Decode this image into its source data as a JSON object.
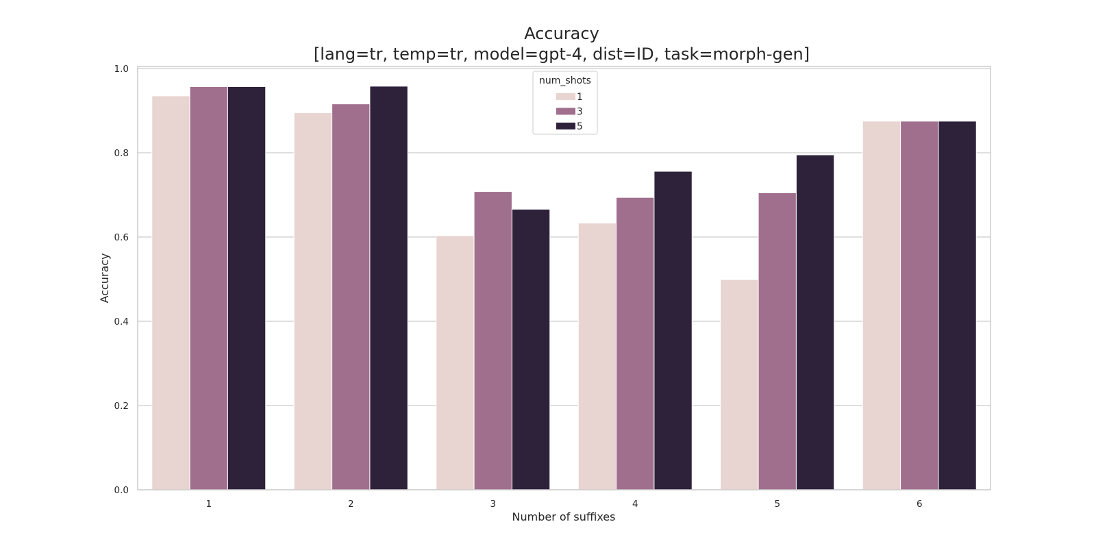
{
  "chart_data": {
    "type": "bar",
    "title": "Accuracy",
    "subtitle": "[lang=tr, temp=tr, model=gpt-4, dist=ID, task=morph-gen]",
    "xlabel": "Number of suffixes",
    "ylabel": "Accuracy",
    "categories": [
      "1",
      "2",
      "3",
      "4",
      "5",
      "6"
    ],
    "ylim": [
      0,
      1.0
    ],
    "yticks": [
      "0.0",
      "0.2",
      "0.4",
      "0.6",
      "0.8",
      "1.0"
    ],
    "grid": "horizontal",
    "legend": {
      "title": "num_shots",
      "placement": "upper-center"
    },
    "series": [
      {
        "name": "1",
        "color": "#e8d4d0",
        "values": [
          0.935,
          0.895,
          0.603,
          0.633,
          0.499,
          0.875
        ]
      },
      {
        "name": "3",
        "color": "#a06f8e",
        "values": [
          0.957,
          0.916,
          0.708,
          0.694,
          0.705,
          0.875
        ]
      },
      {
        "name": "5",
        "color": "#2e213a",
        "values": [
          0.957,
          0.958,
          0.666,
          0.756,
          0.795,
          0.875
        ]
      }
    ]
  }
}
